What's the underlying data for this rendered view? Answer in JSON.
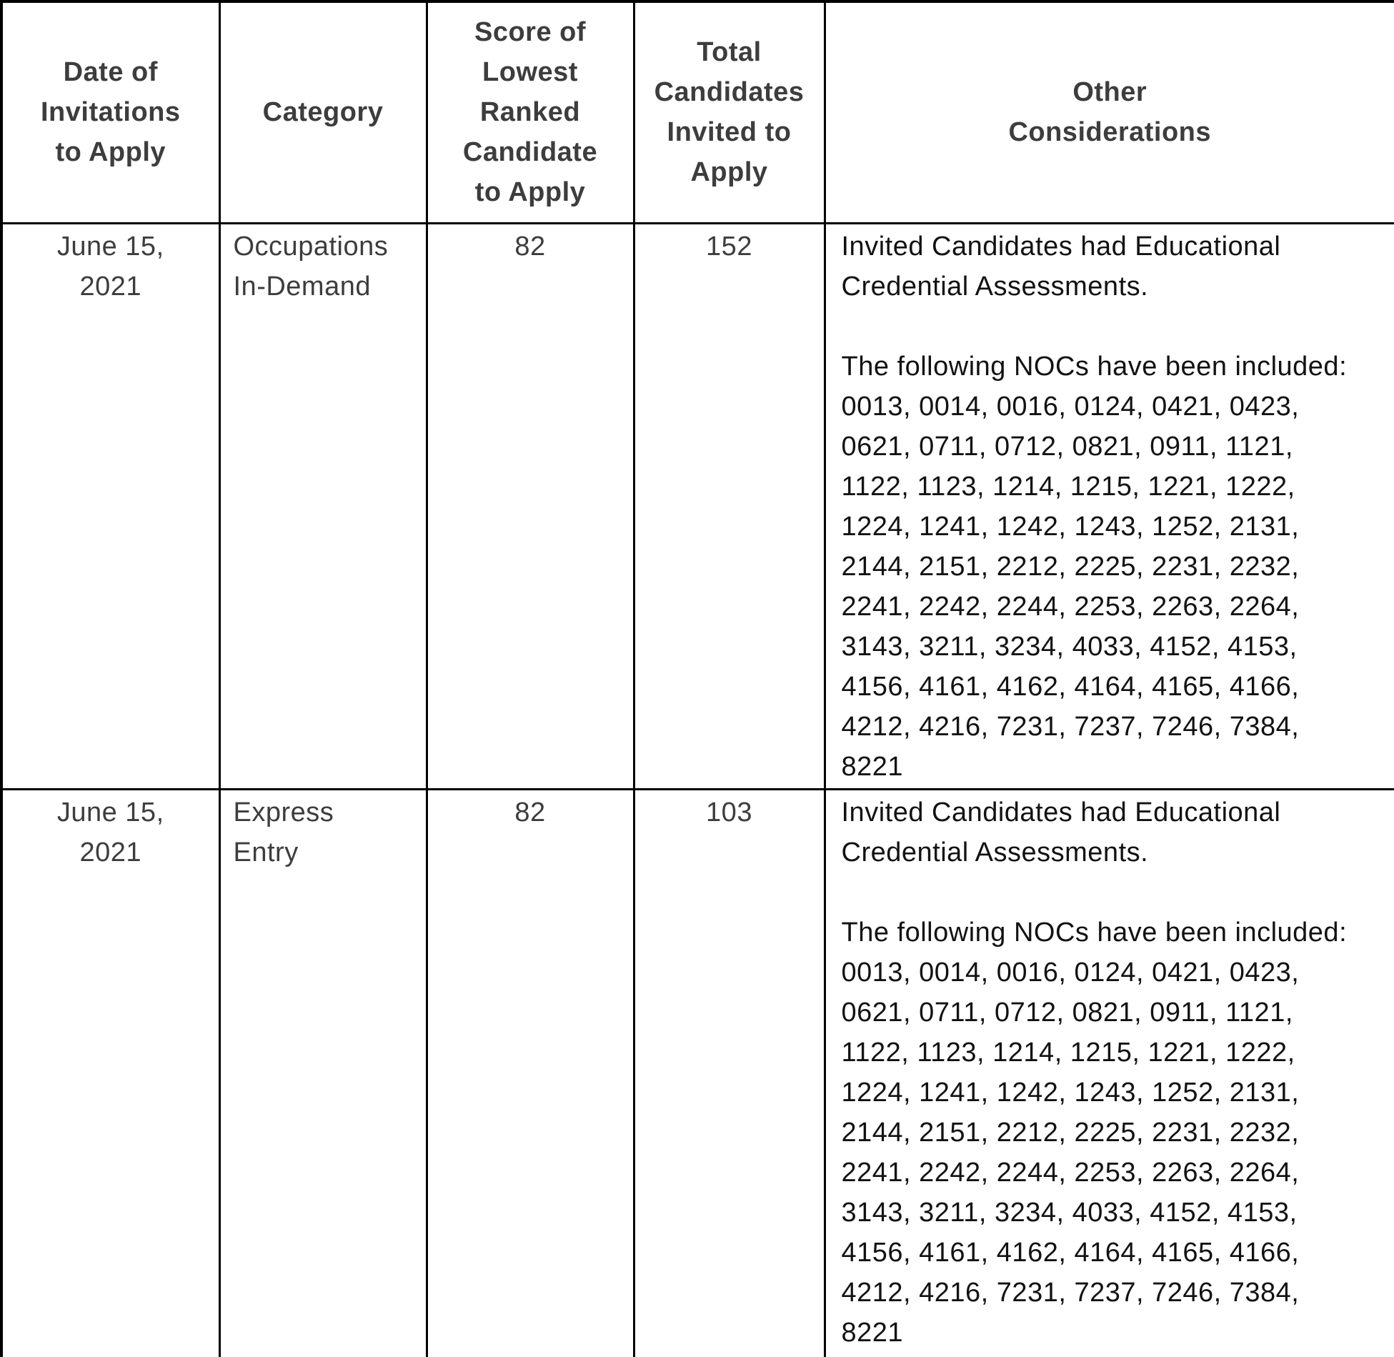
{
  "table": {
    "columns": [
      {
        "id": "date",
        "label": "Date of\nInvitations\nto Apply"
      },
      {
        "id": "category",
        "label": "Category"
      },
      {
        "id": "score",
        "label": "Score of\nLowest\nRanked\nCandidate\nto Apply"
      },
      {
        "id": "total",
        "label": "Total\nCandidates\nInvited to\nApply"
      },
      {
        "id": "other",
        "label": "Other\nConsiderations"
      }
    ],
    "rows": [
      {
        "date": "June 15,\n2021",
        "category": "Occupations\nIn-Demand",
        "score": "82",
        "total": "152",
        "other": "Invited Candidates had Educational\nCredential Assessments.\n\nThe following NOCs have been included:\n0013, 0014, 0016, 0124, 0421, 0423,\n0621, 0711, 0712, 0821, 0911, 1121,\n1122, 1123, 1214, 1215, 1221, 1222,\n1224, 1241, 1242, 1243, 1252, 2131,\n2144, 2151, 2212, 2225, 2231, 2232,\n2241, 2242, 2244, 2253, 2263, 2264,\n3143, 3211, 3234, 4033, 4152, 4153,\n4156, 4161, 4162, 4164, 4165, 4166,\n4212, 4216, 7231, 7237, 7246, 7384,\n8221"
      },
      {
        "date": "June 15,\n2021",
        "category": "Express\nEntry",
        "score": "82",
        "total": "103",
        "other": "Invited Candidates had Educational\nCredential Assessments.\n\nThe following NOCs have been included:\n0013, 0014, 0016, 0124, 0421, 0423,\n0621, 0711, 0712, 0821, 0911, 1121,\n1122, 1123, 1214, 1215, 1221, 1222,\n1224, 1241, 1242, 1243, 1252, 2131,\n2144, 2151, 2212, 2225, 2231, 2232,\n2241, 2242, 2244, 2253, 2263, 2264,\n3143, 3211, 3234, 4033, 4152, 4153,\n4156, 4161, 4162, 4164, 4165, 4166,\n4212, 4216, 7231, 7237, 7246, 7384,\n8221"
      }
    ]
  }
}
